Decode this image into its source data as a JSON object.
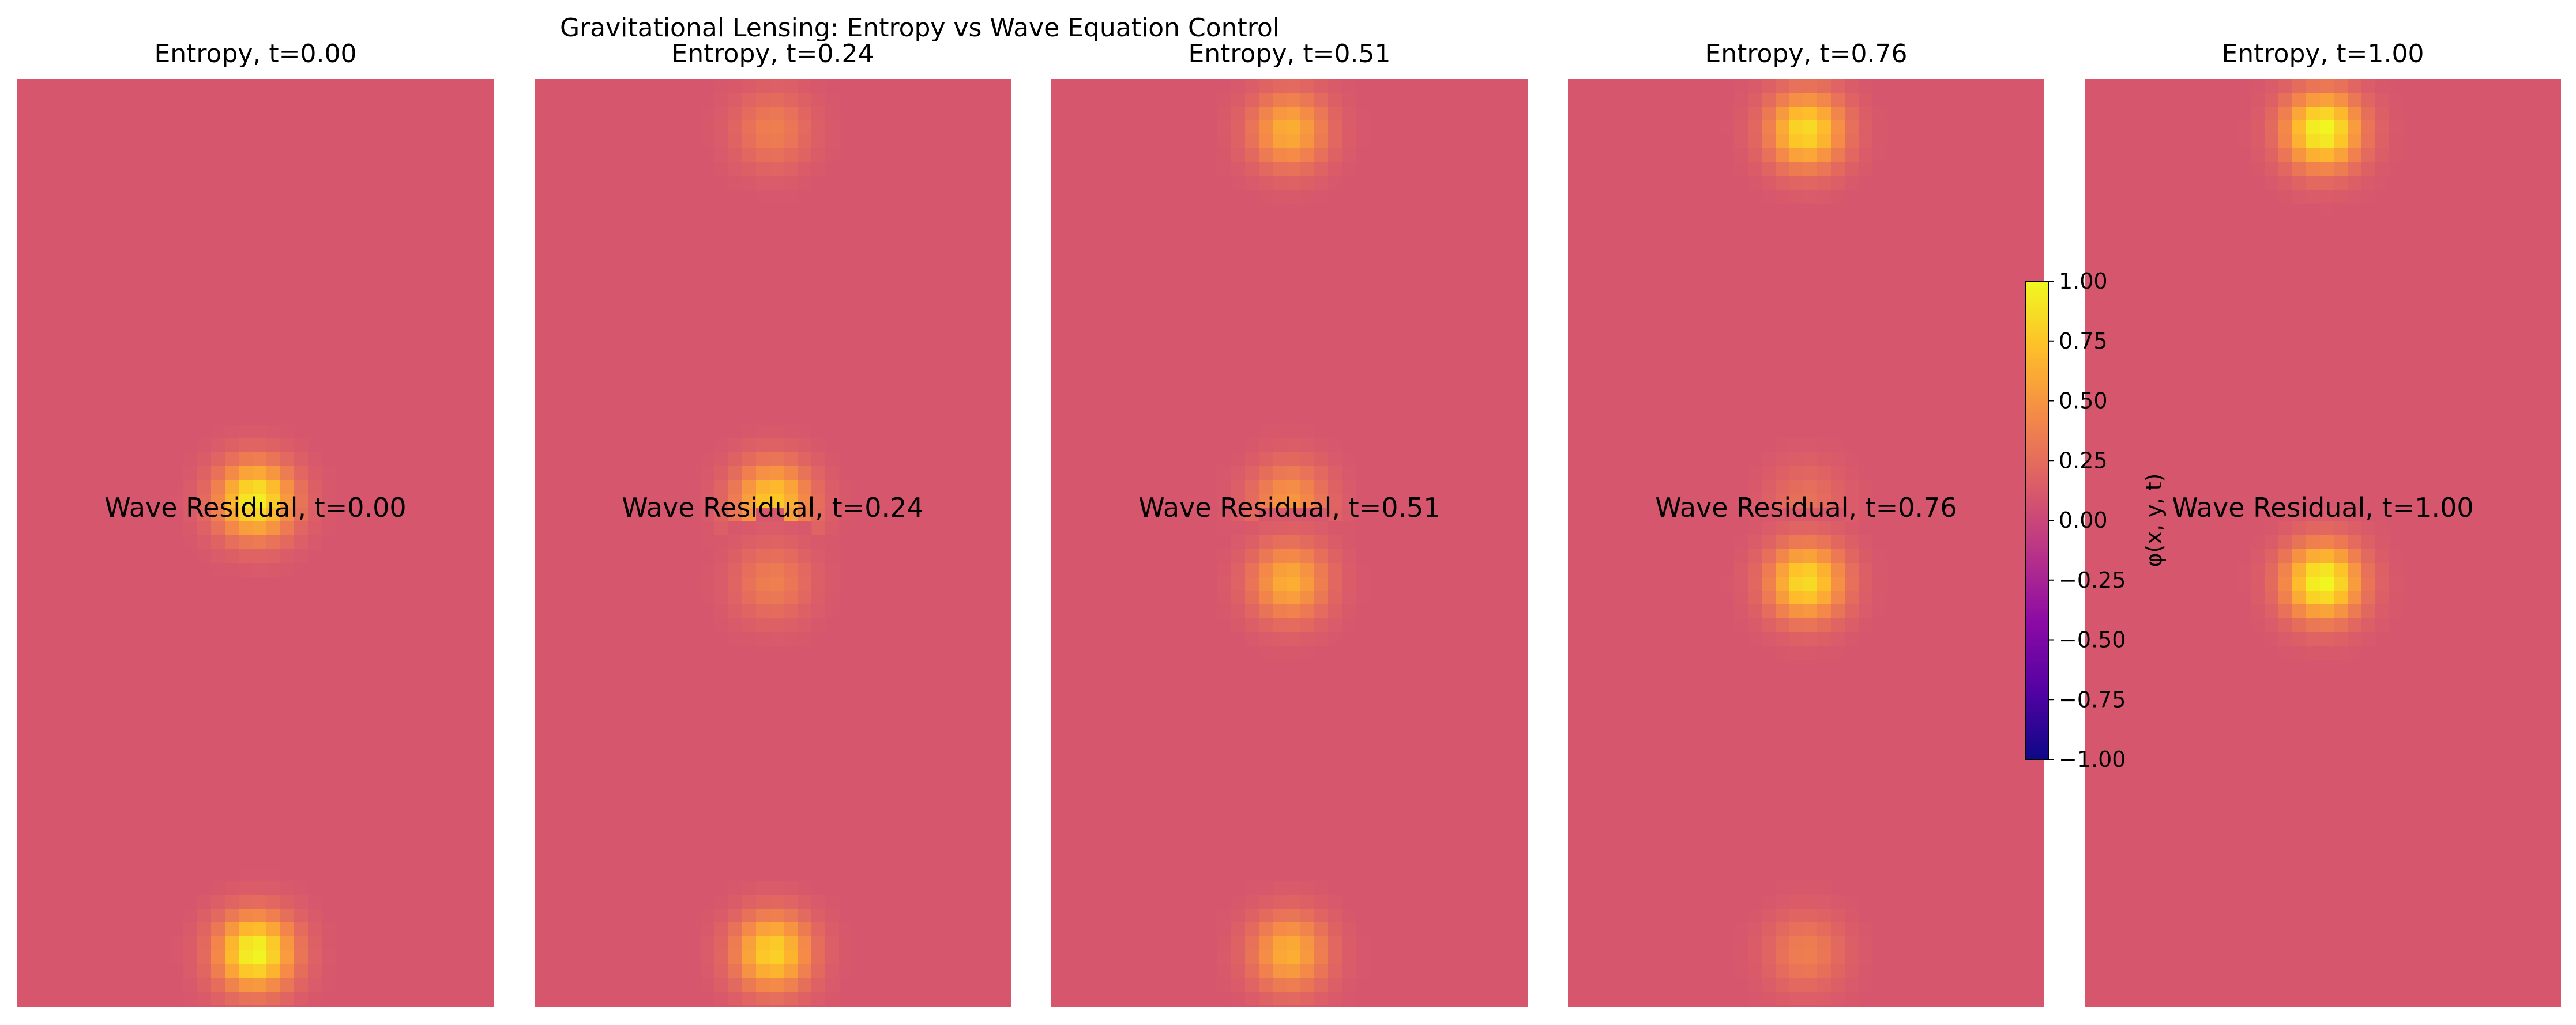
{
  "figure": {
    "suptitle": "Gravitational Lensing: Entropy vs Wave Equation Control"
  },
  "colors": {
    "background": "#ffffff",
    "colormap": "plasma",
    "cmap_stops": [
      "#0d0887",
      "#5302a3",
      "#8b0aa5",
      "#b83289",
      "#db5c68",
      "#f48849",
      "#febd2a",
      "#f0f921"
    ]
  },
  "colorbar": {
    "label": "φ(x, y, t)",
    "range": [
      -1.0,
      1.0
    ],
    "ticks": [
      "1.00",
      "0.75",
      "0.50",
      "0.25",
      "0.00",
      "−0.25",
      "−0.50",
      "−0.75",
      "−1.00"
    ],
    "tick_values": [
      1.0,
      0.75,
      0.5,
      0.25,
      0.0,
      -0.25,
      -0.5,
      -0.75,
      -1.0
    ]
  },
  "chart_data": {
    "type": "heatmap",
    "title": "Gravitational Lensing: Entropy vs Wave Equation Control",
    "grid": false,
    "value_range": [
      -1.0,
      1.0
    ],
    "background_value": 0.1,
    "panels": [
      {
        "t": 0.0,
        "title": "Entropy, t=0.00",
        "overlay_label": "Wave Residual, t=0.00",
        "peaks": [
          {
            "row": "middle",
            "amplitude": 0.95
          },
          {
            "row": "bottom",
            "amplitude": 1.0
          }
        ]
      },
      {
        "t": 0.24,
        "title": "Entropy, t=0.24",
        "overlay_label": "Wave Residual, t=0.24",
        "peaks": [
          {
            "row": "top",
            "amplitude": 0.3
          },
          {
            "row": "middle",
            "amplitude": 0.75
          },
          {
            "row": "lower-middle",
            "amplitude": 0.3
          },
          {
            "row": "bottom",
            "amplitude": 0.8
          }
        ]
      },
      {
        "t": 0.51,
        "title": "Entropy, t=0.51",
        "overlay_label": "Wave Residual, t=0.51",
        "peaks": [
          {
            "row": "top",
            "amplitude": 0.6
          },
          {
            "row": "middle",
            "amplitude": 0.45
          },
          {
            "row": "lower-middle",
            "amplitude": 0.6
          },
          {
            "row": "bottom",
            "amplitude": 0.6
          }
        ]
      },
      {
        "t": 0.76,
        "title": "Entropy, t=0.76",
        "overlay_label": "Wave Residual, t=0.76",
        "peaks": [
          {
            "row": "top",
            "amplitude": 0.85
          },
          {
            "row": "middle",
            "amplitude": 0.2
          },
          {
            "row": "lower-middle",
            "amplitude": 0.85
          },
          {
            "row": "bottom",
            "amplitude": 0.3
          }
        ]
      },
      {
        "t": 1.0,
        "title": "Entropy, t=1.00",
        "overlay_label": "Wave Residual, t=1.00",
        "peaks": [
          {
            "row": "top",
            "amplitude": 1.0
          },
          {
            "row": "lower-middle",
            "amplitude": 1.0
          }
        ]
      }
    ]
  }
}
